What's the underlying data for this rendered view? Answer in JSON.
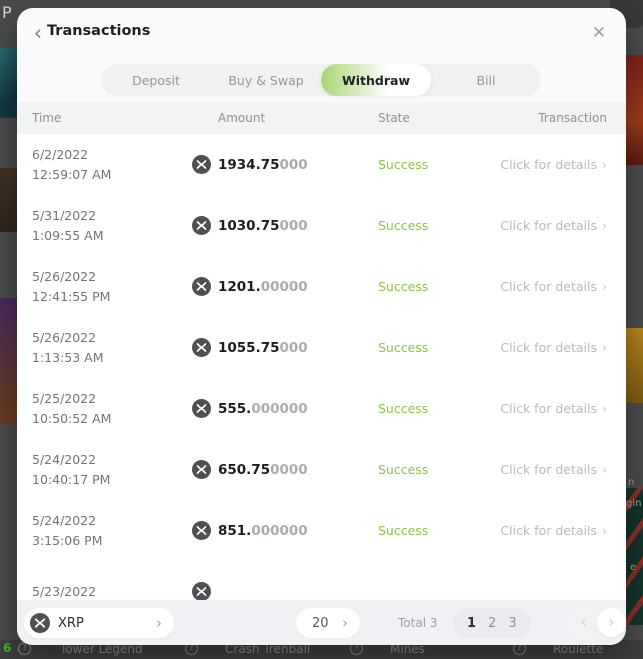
{
  "backdrop": {
    "edge_fragments": {
      "top_left": "P",
      "right_1": "n",
      "right_2": "gin",
      "right_3": "e"
    },
    "bottom_bar": {
      "leading_number": "6",
      "help_icon": "?",
      "items": [
        "Tower Legend",
        "Crash Trenball",
        "Mines",
        "Roulette"
      ]
    }
  },
  "modal": {
    "title": "Transactions",
    "back_icon": "‹",
    "close_icon": "✕",
    "tabs": [
      {
        "label": "Deposit",
        "active": false
      },
      {
        "label": "Buy & Swap",
        "active": false
      },
      {
        "label": "Withdraw",
        "active": true
      },
      {
        "label": "Bill",
        "active": false
      }
    ],
    "table": {
      "columns": [
        "Time",
        "Amount",
        "State",
        "Transaction"
      ],
      "rows": [
        {
          "date": "6/2/2022",
          "time": "12:59:07 AM",
          "amount_bold": "1934.75",
          "amount_gray": "000",
          "state": "Success",
          "action": "Click for details"
        },
        {
          "date": "5/31/2022",
          "time": "1:09:55 AM",
          "amount_bold": "1030.75",
          "amount_gray": "000",
          "state": "Success",
          "action": "Click for details"
        },
        {
          "date": "5/26/2022",
          "time": "12:41:55 PM",
          "amount_bold": "1201.",
          "amount_gray": "00000",
          "state": "Success",
          "action": "Click for details"
        },
        {
          "date": "5/26/2022",
          "time": "1:13:53 AM",
          "amount_bold": "1055.75",
          "amount_gray": "000",
          "state": "Success",
          "action": "Click for details"
        },
        {
          "date": "5/25/2022",
          "time": "10:50:52 AM",
          "amount_bold": "555.",
          "amount_gray": "000000",
          "state": "Success",
          "action": "Click for details"
        },
        {
          "date": "5/24/2022",
          "time": "10:40:17 PM",
          "amount_bold": "650.75",
          "amount_gray": "0000",
          "state": "Success",
          "action": "Click for details"
        },
        {
          "date": "5/24/2022",
          "time": "3:15:06 PM",
          "amount_bold": "851.",
          "amount_gray": "000000",
          "state": "Success",
          "action": "Click for details"
        },
        {
          "date": "5/23/2022",
          "time": "",
          "amount_bold": "",
          "amount_gray": "",
          "state": "",
          "action": ""
        }
      ]
    },
    "footer": {
      "currency": "XRP",
      "page_size": "20",
      "total_label": "Total 3",
      "pages": [
        "1",
        "2",
        "3"
      ],
      "active_page": "1"
    }
  },
  "colors": {
    "accent_green": "#8dc63f",
    "tab_active_gradient": "#a9d674",
    "coin_circle": "#4e5053"
  }
}
